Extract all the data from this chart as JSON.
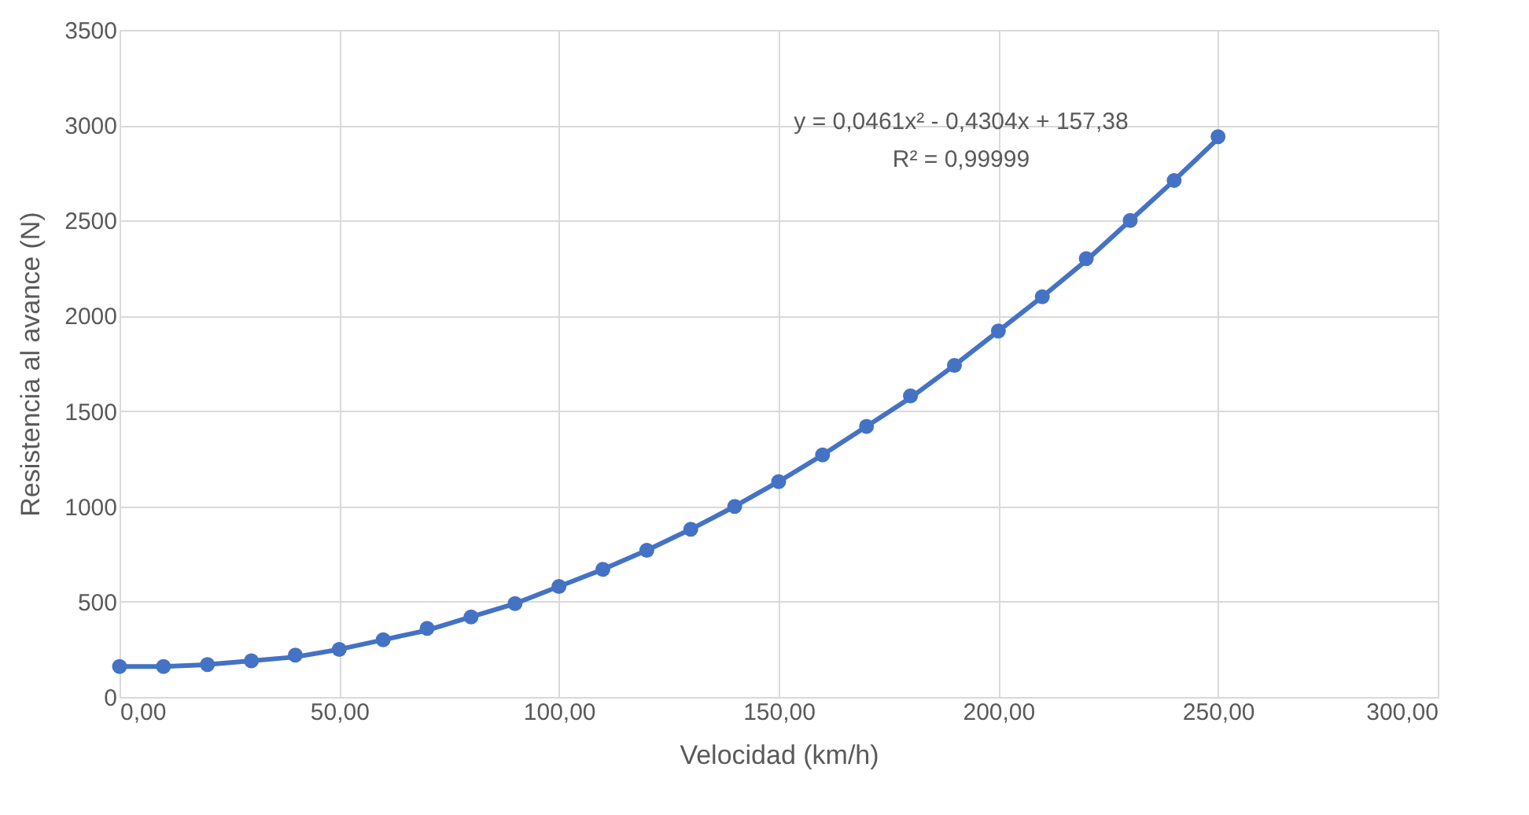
{
  "chart_data": {
    "type": "scatter",
    "xlabel": "Velocidad (km/h)",
    "ylabel": "Resistencia al avance (N)",
    "x": [
      0,
      10,
      20,
      30,
      40,
      50,
      60,
      70,
      80,
      90,
      100,
      110,
      120,
      130,
      140,
      150,
      160,
      170,
      180,
      190,
      200,
      210,
      220,
      230,
      240,
      250
    ],
    "series": [
      {
        "color": "#4472c4",
        "marker": "circle",
        "values": [
          160,
          160,
          170,
          190,
          220,
          250,
          300,
          360,
          420,
          490,
          580,
          670,
          770,
          880,
          1000,
          1130,
          1270,
          1420,
          1580,
          1740,
          1920,
          2100,
          2300,
          2500,
          2710,
          2940
        ]
      },
      {
        "type": "line",
        "color": "#4472c4",
        "line_style": "solid",
        "marker": "none",
        "values": [
          160,
          160,
          170,
          190,
          210,
          250,
          300,
          350,
          420,
          490,
          580,
          670,
          770,
          880,
          1000,
          1130,
          1270,
          1420,
          1570,
          1740,
          1920,
          2100,
          2290,
          2500,
          2710,
          2930
        ]
      }
    ],
    "xlim": [
      0,
      300
    ],
    "xticks": [
      {
        "value": 0,
        "label": "0,00"
      },
      {
        "value": 50,
        "label": "50,00"
      },
      {
        "value": 100,
        "label": "100,00"
      },
      {
        "value": 150,
        "label": "150,00"
      },
      {
        "value": 200,
        "label": "200,00"
      },
      {
        "value": 250,
        "label": "250,00"
      },
      {
        "value": 300,
        "label": "300,00"
      }
    ],
    "ylim": [
      0,
      3500
    ],
    "yticks": [
      0,
      500,
      1000,
      1500,
      2000,
      2500,
      3000,
      3500
    ],
    "grid": true,
    "annotations": [
      "y = 0,0461x² - 0,4304x + 157,38",
      "R² = 0,99999"
    ]
  }
}
